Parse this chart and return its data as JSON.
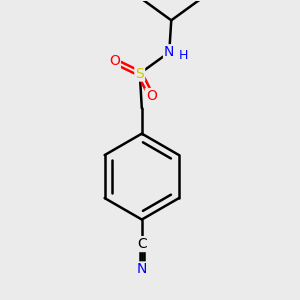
{
  "background_color": "#ebebeb",
  "bond_color": "#000000",
  "atom_colors": {
    "N": "#0000ff",
    "O": "#ff0000",
    "S": "#cccc00",
    "C": "#000000",
    "H": "#000000"
  },
  "bond_width": 1.8,
  "figsize": [
    3.0,
    3.0
  ],
  "dpi": 100
}
